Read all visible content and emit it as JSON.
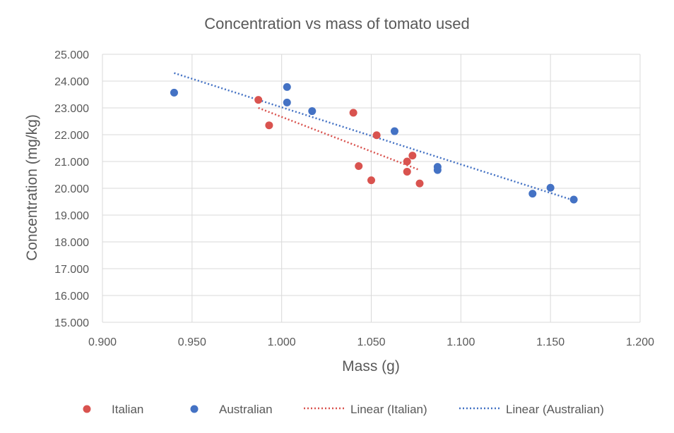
{
  "chart_data": {
    "type": "scatter",
    "title": "Concentration vs mass of tomato used",
    "xlabel": "Mass (g)",
    "ylabel": "Concentration (mg/kg)",
    "xlim": [
      0.9,
      1.2
    ],
    "ylim": [
      15.0,
      25.0
    ],
    "x_ticks": [
      "0.900",
      "0.950",
      "1.000",
      "1.050",
      "1.100",
      "1.150",
      "1.200"
    ],
    "y_ticks": [
      "15.000",
      "16.000",
      "17.000",
      "18.000",
      "19.000",
      "20.000",
      "21.000",
      "22.000",
      "23.000",
      "24.000",
      "25.000"
    ],
    "grid": true,
    "legend_position": "bottom",
    "series": [
      {
        "name": "Italian",
        "color": "#d9534f",
        "points": [
          {
            "x": 0.987,
            "y": 23.3
          },
          {
            "x": 0.993,
            "y": 22.35
          },
          {
            "x": 1.04,
            "y": 22.82
          },
          {
            "x": 1.043,
            "y": 20.83
          },
          {
            "x": 1.05,
            "y": 20.3
          },
          {
            "x": 1.053,
            "y": 21.98
          },
          {
            "x": 1.07,
            "y": 21.0
          },
          {
            "x": 1.07,
            "y": 20.62
          },
          {
            "x": 1.073,
            "y": 21.22
          },
          {
            "x": 1.077,
            "y": 20.18
          }
        ]
      },
      {
        "name": "Australian",
        "color": "#4472c4",
        "points": [
          {
            "x": 0.94,
            "y": 23.57
          },
          {
            "x": 1.003,
            "y": 23.78
          },
          {
            "x": 1.003,
            "y": 23.2
          },
          {
            "x": 1.017,
            "y": 22.88
          },
          {
            "x": 1.063,
            "y": 22.13
          },
          {
            "x": 1.087,
            "y": 20.8
          },
          {
            "x": 1.087,
            "y": 20.68
          },
          {
            "x": 1.14,
            "y": 19.8
          },
          {
            "x": 1.15,
            "y": 20.02
          },
          {
            "x": 1.163,
            "y": 19.58
          }
        ]
      }
    ],
    "trendlines": [
      {
        "name": "Linear (Italian)",
        "color": "#d9534f",
        "from": {
          "x": 0.987,
          "y": 23.0
        },
        "to": {
          "x": 1.077,
          "y": 20.68
        }
      },
      {
        "name": "Linear (Australian)",
        "color": "#4472c4",
        "from": {
          "x": 0.94,
          "y": 24.3
        },
        "to": {
          "x": 1.163,
          "y": 19.55
        }
      }
    ],
    "legend": [
      "Italian",
      "Australian",
      "Linear (Italian)",
      "Linear (Australian)"
    ]
  }
}
